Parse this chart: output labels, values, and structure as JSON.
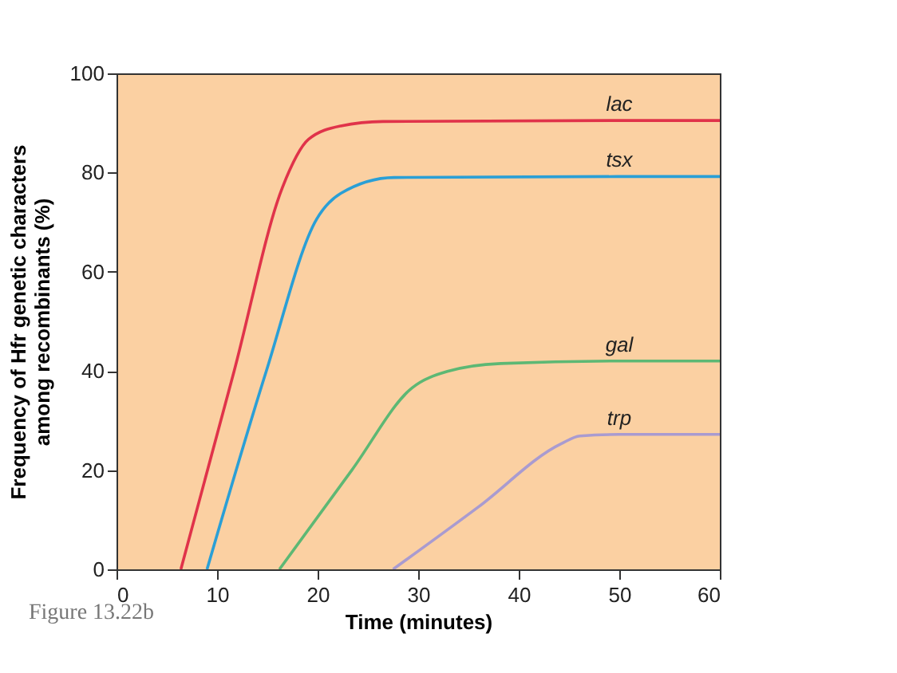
{
  "chart_data": {
    "type": "line",
    "xlabel": "Time (minutes)",
    "ylabel": "Frequency of Hfr genetic characters\namong recombinants (%)",
    "xlim": [
      0,
      60
    ],
    "ylim": [
      0,
      100
    ],
    "xticks": [
      0,
      10,
      20,
      30,
      40,
      50,
      60
    ],
    "yticks": [
      0,
      20,
      40,
      60,
      80,
      100
    ],
    "grid": false,
    "legend": false,
    "marker": "none",
    "line_style": "solid",
    "annotations": [
      "Figure 13.22b"
    ],
    "series": [
      {
        "name": "lac",
        "color": "#e0334a",
        "x": [
          6.4,
          11.7,
          16.5,
          19.1,
          22.3,
          26.5,
          50,
          60
        ],
        "values": [
          0,
          40,
          77,
          86.7,
          89.4,
          90.3,
          90.5,
          90.5
        ]
      },
      {
        "name": "tsx",
        "color": "#2a9fd6",
        "x": [
          9.0,
          14.9,
          19.9,
          22.3,
          27.6,
          50,
          60
        ],
        "values": [
          0,
          40,
          70.6,
          75.8,
          79,
          79.2,
          79.2
        ]
      },
      {
        "name": "gal",
        "color": "#5db874",
        "x": [
          16.2,
          23.4,
          29.4,
          32.9,
          38.2,
          50,
          60
        ],
        "values": [
          0,
          20,
          36.6,
          39.9,
          41.5,
          42,
          42
        ]
      },
      {
        "name": "trp",
        "color": "#a99bd0",
        "x": [
          27.5,
          36.0,
          44.2,
          46.1,
          50,
          60
        ],
        "values": [
          0,
          12.6,
          25.3,
          26.9,
          27.2,
          27.2
        ]
      }
    ]
  }
}
